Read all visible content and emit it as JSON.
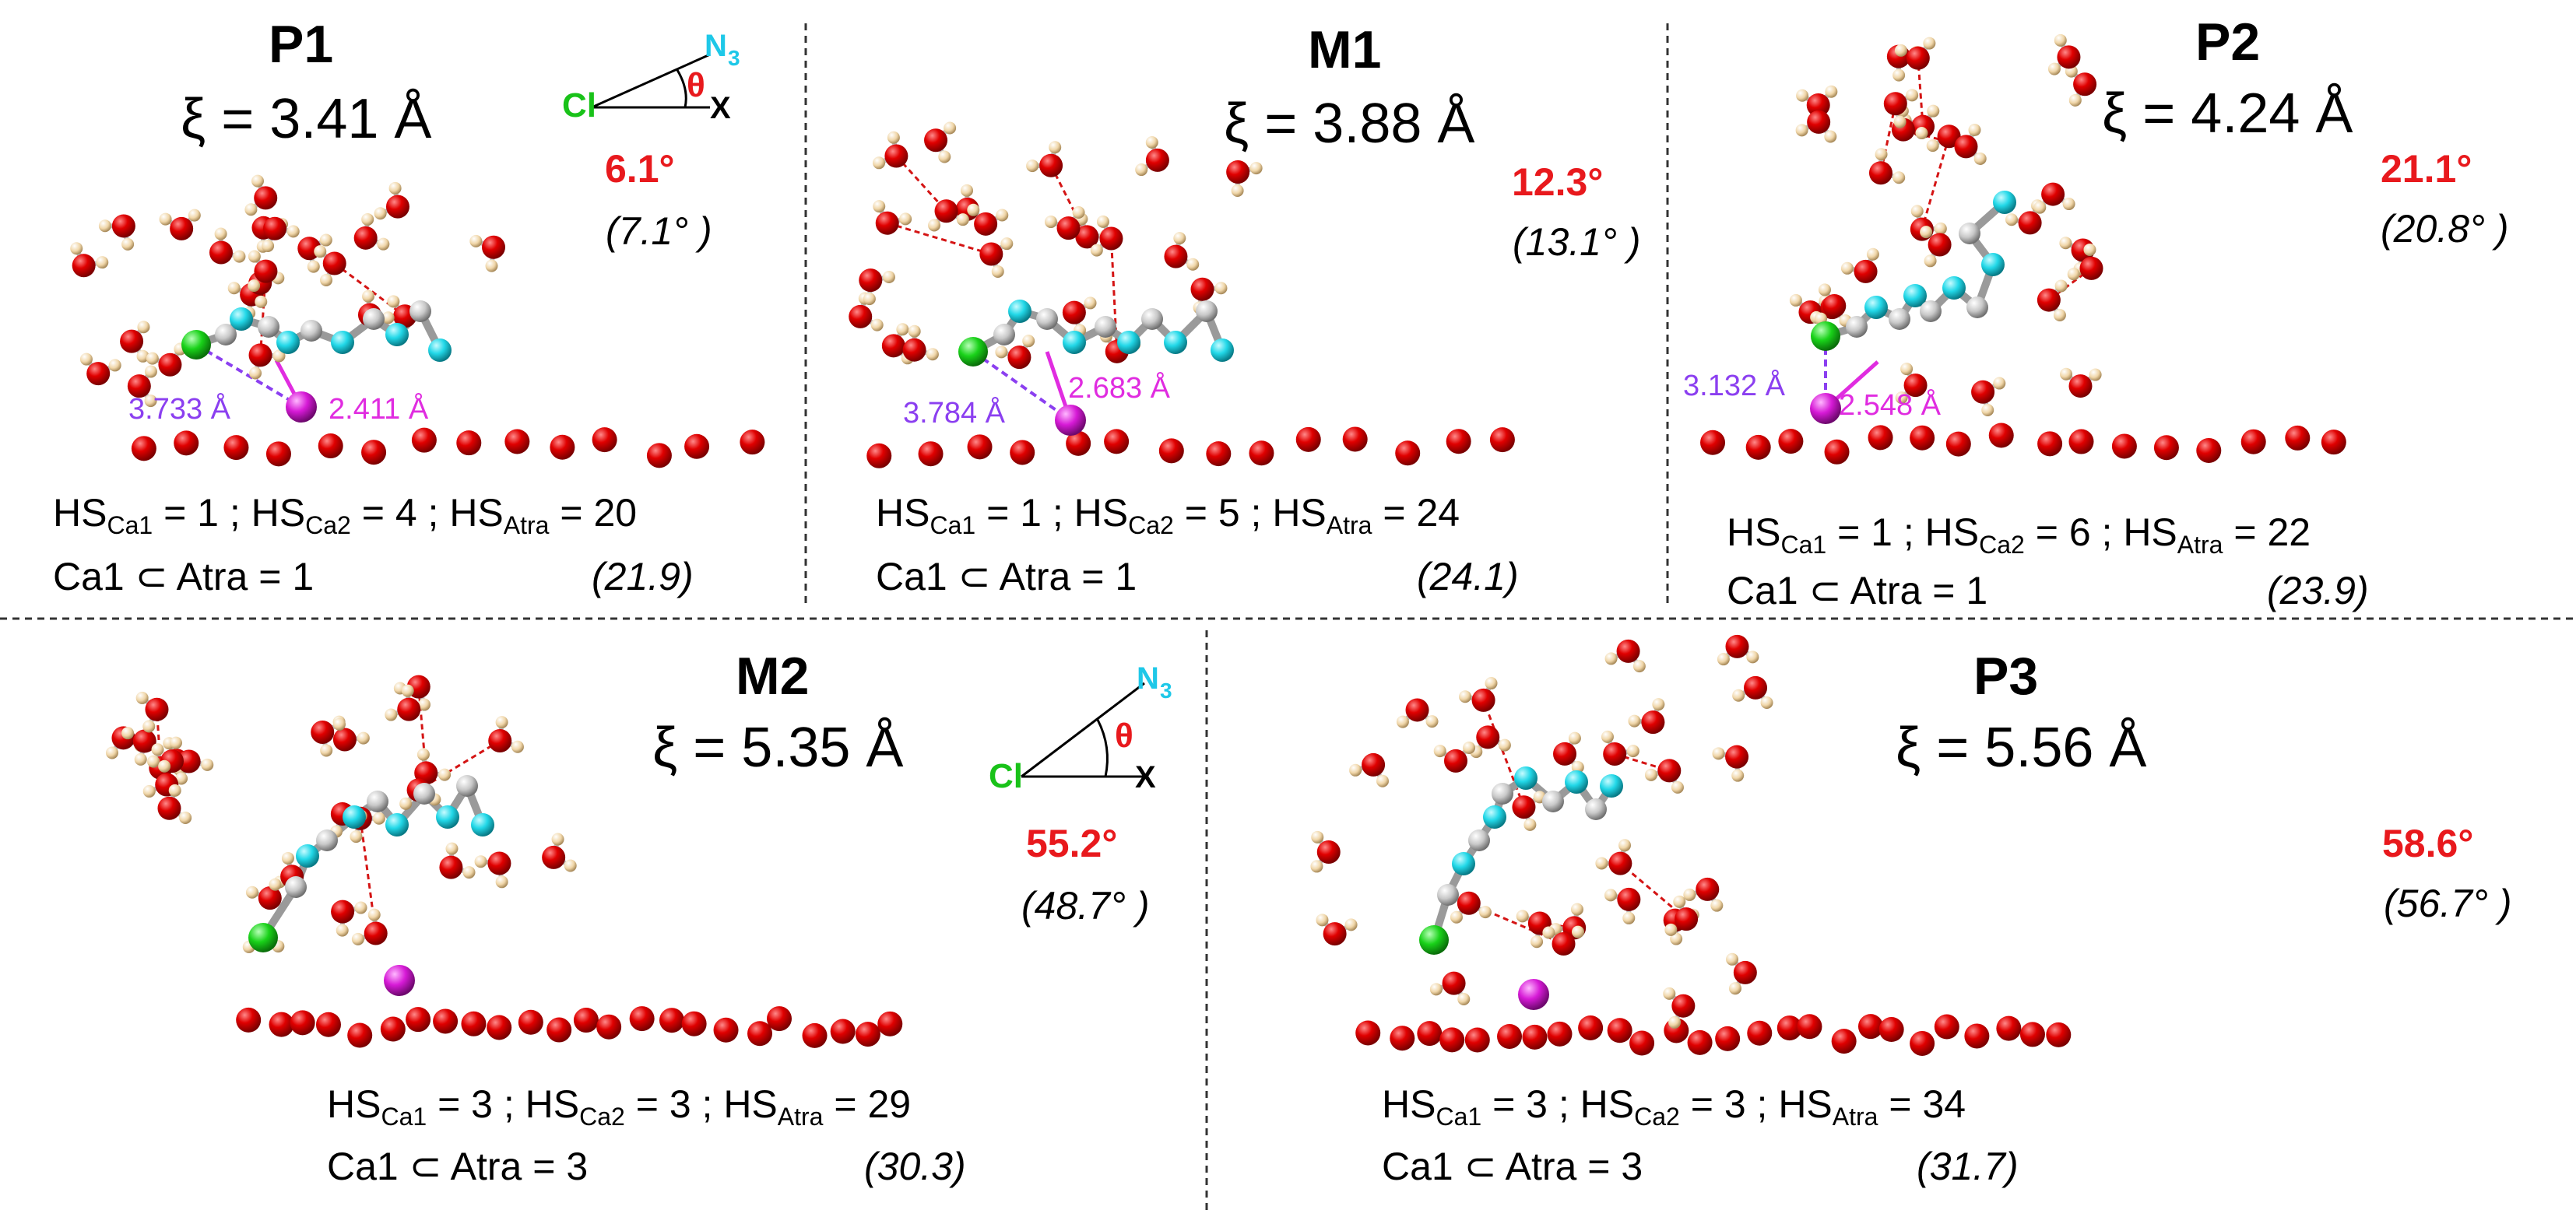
{
  "angle_legend": {
    "cl": "Cl",
    "n3": "N",
    "n3_sub": "3",
    "theta": "θ",
    "x": "X"
  },
  "panels": [
    {
      "id": "P1",
      "title": "P1",
      "xi": "ξ = 3.41 Å",
      "angle": "6.1°",
      "angle_ref": "(7.1° )",
      "hs_ca1": "1",
      "hs_ca2": "4",
      "hs_atra": "20",
      "ca1_atra": "Ca1 ⊂  Atra = 1",
      "total": "(21.9)",
      "dist_cl": "3.733 Å",
      "dist_n": "2.411 Å"
    },
    {
      "id": "M1",
      "title": "M1",
      "xi": "ξ = 3.88 Å",
      "angle": "12.3°",
      "angle_ref": "(13.1° )",
      "hs_ca1": "1",
      "hs_ca2": "5",
      "hs_atra": "24",
      "ca1_atra": "Ca1 ⊂  Atra = 1",
      "total": "(24.1)",
      "dist_cl": "3.784 Å",
      "dist_n": "2.683 Å"
    },
    {
      "id": "P2",
      "title": "P2",
      "xi": "ξ = 4.24 Å",
      "angle": "21.1°",
      "angle_ref": "(20.8° )",
      "hs_ca1": "1",
      "hs_ca2": "6",
      "hs_atra": "22",
      "ca1_atra": "Ca1 ⊂  Atra = 1",
      "total": "(23.9)",
      "dist_cl": "3.132 Å",
      "dist_n": "2.548 Å"
    },
    {
      "id": "M2",
      "title": "M2",
      "xi": "ξ = 5.35 Å",
      "angle": "55.2°",
      "angle_ref": "(48.7° )",
      "hs_ca1": "3",
      "hs_ca2": "3",
      "hs_atra": "29",
      "ca1_atra": "Ca1 ⊂  Atra = 3",
      "total": "(30.3)"
    },
    {
      "id": "P3",
      "title": "P3",
      "xi": "ξ = 5.56 Å",
      "angle": "58.6°",
      "angle_ref": "(56.7° )",
      "hs_ca1": "3",
      "hs_ca2": "3",
      "hs_atra": "34",
      "ca1_atra": "Ca1 ⊂  Atra = 3",
      "total": "(31.7)"
    }
  ],
  "hs_labels": {
    "hs": "HS",
    "ca1": "Ca1",
    "ca2": "Ca2",
    "atra": "Atra",
    "sep": " ; ",
    "eq": " = "
  },
  "colors": {
    "oxygen": "#e00000",
    "hydrogen": "#f0d6a8",
    "carbon": "#c8c8c8",
    "nitrogen": "#22d8e8",
    "chlorine": "#19d219",
    "calcium": "#d61ad6",
    "angle": "#e8191d",
    "hbond": "#d41414",
    "cl_dist": "#8b3ff0",
    "n_dist": "#e02ce0"
  }
}
